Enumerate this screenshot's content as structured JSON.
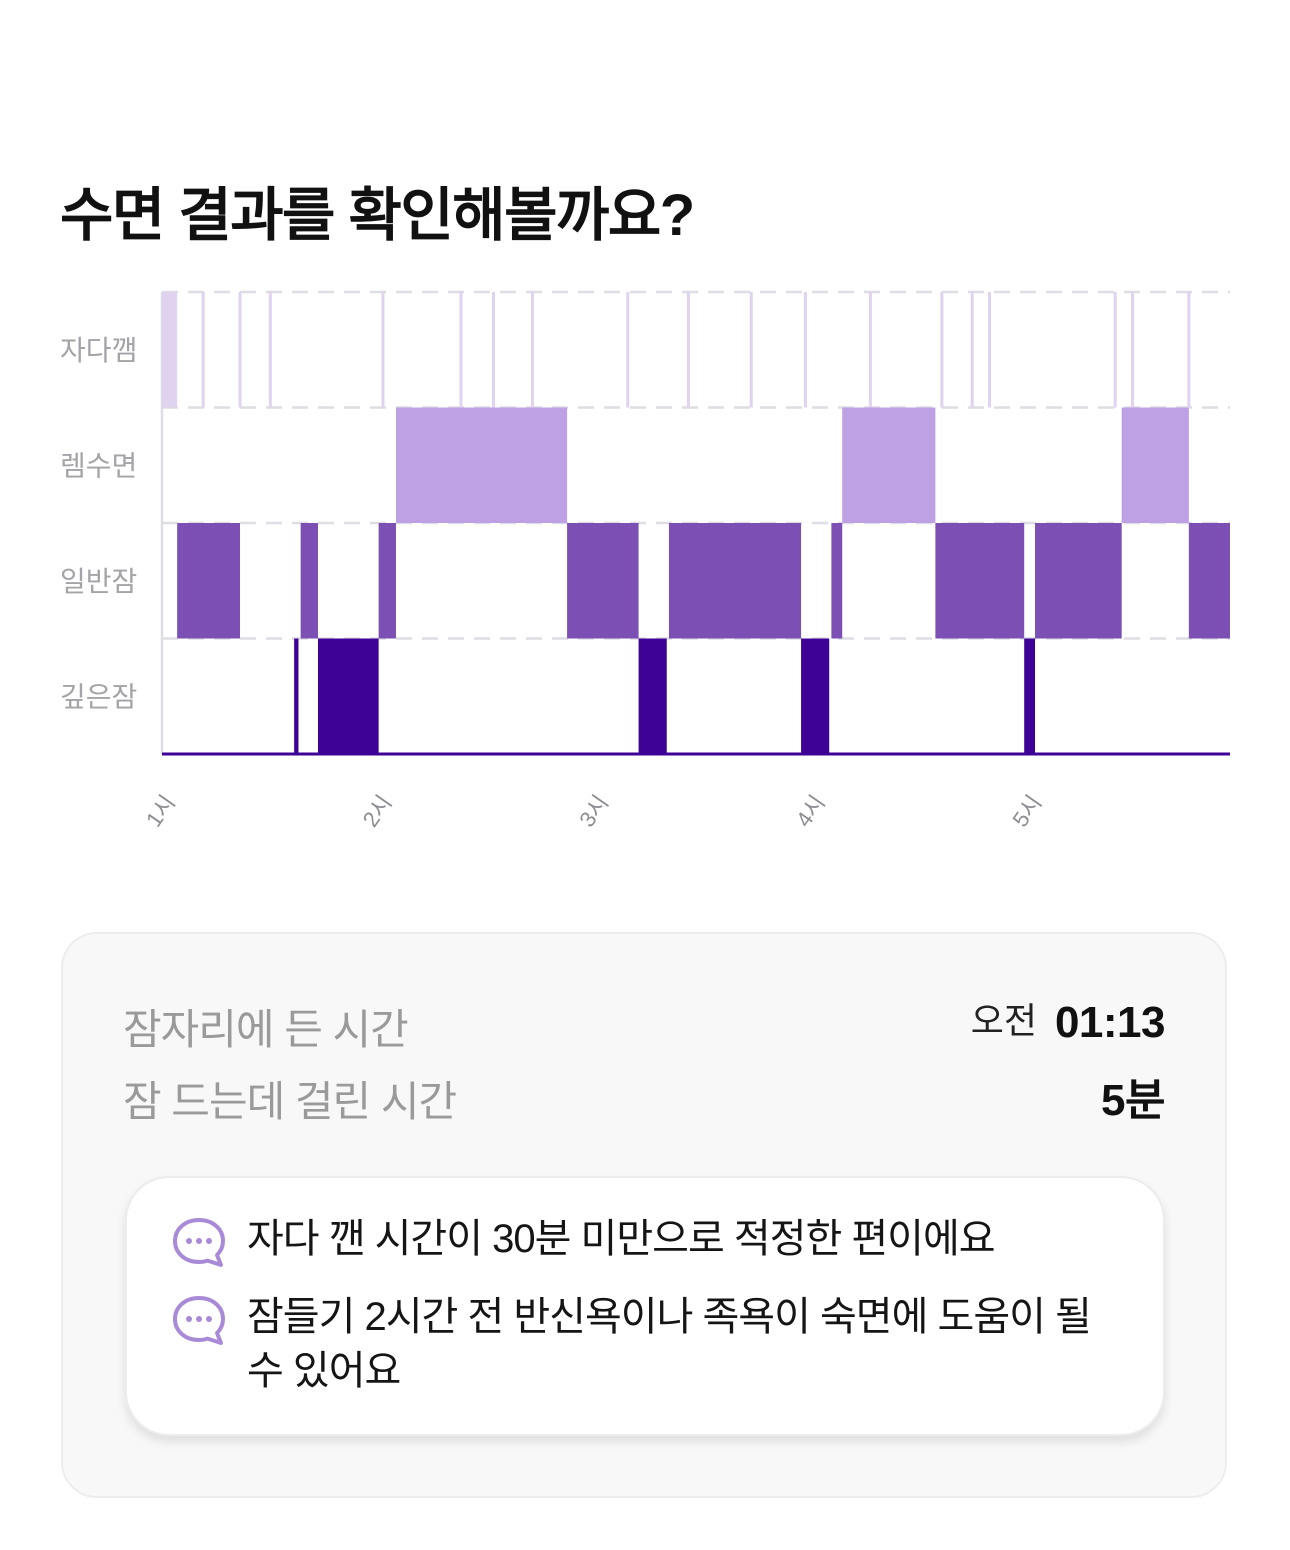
{
  "header": {
    "title": "수면 결과를 확인해볼까요?"
  },
  "colors": {
    "awake": "#dfd3ef",
    "rem": "#bea0e4",
    "light": "#7b4fb4",
    "deep": "#3e0396",
    "grid": "#dddde3",
    "axis_text": "#a3a3a8",
    "icon": "#a98ad6"
  },
  "chart_data": {
    "type": "hypnogram",
    "title": "",
    "stages": [
      "자다깸",
      "렘수면",
      "일반잠",
      "깊은잠"
    ],
    "x_ticks": [
      "1시",
      "2시",
      "3시",
      "4시",
      "5시"
    ],
    "x_tick_hours": [
      1,
      2,
      3,
      4,
      5
    ],
    "x_range_hours": [
      1.0,
      5.93
    ],
    "segments": [
      {
        "stage": "자다깸",
        "start": 1.0,
        "end": 1.07
      },
      {
        "stage": "일반잠",
        "start": 1.07,
        "end": 1.36
      },
      {
        "stage": "깊은잠",
        "start": 1.61,
        "end": 1.63
      },
      {
        "stage": "일반잠",
        "start": 1.64,
        "end": 1.72
      },
      {
        "stage": "깊은잠",
        "start": 1.72,
        "end": 2.0
      },
      {
        "stage": "일반잠",
        "start": 2.0,
        "end": 2.08
      },
      {
        "stage": "렘수면",
        "start": 2.08,
        "end": 2.87
      },
      {
        "stage": "일반잠",
        "start": 2.87,
        "end": 3.2
      },
      {
        "stage": "깊은잠",
        "start": 3.2,
        "end": 3.33
      },
      {
        "stage": "일반잠",
        "start": 3.34,
        "end": 3.95
      },
      {
        "stage": "깊은잠",
        "start": 3.95,
        "end": 4.08
      },
      {
        "stage": "일반잠",
        "start": 4.09,
        "end": 4.14
      },
      {
        "stage": "렘수면",
        "start": 4.14,
        "end": 4.57
      },
      {
        "stage": "일반잠",
        "start": 4.57,
        "end": 4.98
      },
      {
        "stage": "깊은잠",
        "start": 4.98,
        "end": 5.03
      },
      {
        "stage": "일반잠",
        "start": 5.03,
        "end": 5.43
      },
      {
        "stage": "렘수면",
        "start": 5.43,
        "end": 5.74
      },
      {
        "stage": "일반잠",
        "start": 5.74,
        "end": 5.93
      }
    ],
    "awake_marks": [
      1.19,
      1.36,
      1.5,
      2.02,
      2.38,
      2.53,
      2.71,
      3.15,
      3.43,
      3.72,
      3.97,
      4.27,
      4.6,
      4.74,
      4.82,
      5.4,
      5.48,
      5.74
    ]
  },
  "summary": {
    "bedtime": {
      "label": "잠자리에 든 시간",
      "prefix": "오전",
      "value": "01:13"
    },
    "latency": {
      "label": "잠 드는데 걸린 시간",
      "value": "5분"
    }
  },
  "tips": [
    {
      "icon": "chat-bubble-icon",
      "text": "자다 깬 시간이 30분 미만으로 적정한 편이에요"
    },
    {
      "icon": "chat-bubble-icon",
      "text": "잠들기 2시간 전 반신욕이나 족욕이 숙면에 도움이 될 수 있어요"
    }
  ]
}
